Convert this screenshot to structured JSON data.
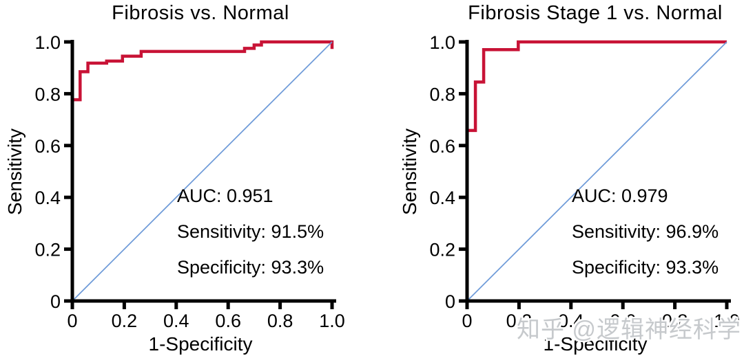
{
  "page": {
    "background": "#ffffff",
    "text_color": "#000000"
  },
  "watermark": {
    "text": "知乎 @逻辑神经科学",
    "color": "#c6c9cc"
  },
  "axis": {
    "color": "#000000",
    "line_width": 5,
    "tick_length": 12,
    "tick_direction": "out"
  },
  "chart_data": [
    {
      "type": "line",
      "title": "Fibrosis vs. Normal",
      "xlabel": "1-Specificity",
      "ylabel": "Sensitivity",
      "xlim": [
        0,
        1
      ],
      "ylim": [
        0,
        1
      ],
      "xticks": [
        "0",
        "0.2",
        "0.4",
        "0.6",
        "0.8",
        "1.0"
      ],
      "yticks": [
        "0",
        "0.2",
        "0.4",
        "0.6",
        "0.8",
        "1.0"
      ],
      "grid": false,
      "legend": "none",
      "stats": {
        "auc": 0.951,
        "sensitivity_pct": 91.5,
        "specificity_pct": 93.3
      },
      "annotations": [
        "AUC: 0.951",
        "Sensitivity: 91.5%",
        "Specificity: 93.3%"
      ],
      "series": [
        {
          "name": "ROC curve",
          "color": "#c81336",
          "width": 4.5,
          "points": [
            [
              0,
              0
            ],
            [
              0,
              0.777
            ],
            [
              0.03,
              0.777
            ],
            [
              0.03,
              0.885
            ],
            [
              0.06,
              0.885
            ],
            [
              0.06,
              0.918
            ],
            [
              0.132,
              0.918
            ],
            [
              0.132,
              0.926
            ],
            [
              0.193,
              0.926
            ],
            [
              0.193,
              0.945
            ],
            [
              0.265,
              0.945
            ],
            [
              0.265,
              0.963
            ],
            [
              0.663,
              0.963
            ],
            [
              0.663,
              0.975
            ],
            [
              0.7,
              0.975
            ],
            [
              0.7,
              0.988
            ],
            [
              0.728,
              0.988
            ],
            [
              0.728,
              1.0
            ],
            [
              1.0,
              1.0
            ],
            [
              1.0,
              0.973
            ]
          ]
        },
        {
          "name": "chance diagonal",
          "color": "#6d9ad8",
          "width": 1.7,
          "points": [
            [
              0,
              0
            ],
            [
              1,
              1
            ]
          ]
        }
      ]
    },
    {
      "type": "line",
      "title": "Fibrosis Stage 1 vs. Normal",
      "xlabel": "1-Specificity",
      "ylabel": "Sensitivity",
      "xlim": [
        0,
        1
      ],
      "ylim": [
        0,
        1
      ],
      "xticks": [
        "0",
        "0.2",
        "0.4",
        "0.6",
        "0.8",
        "1.0"
      ],
      "yticks": [
        "0",
        "0.2",
        "0.4",
        "0.6",
        "0.8",
        "1.0"
      ],
      "grid": false,
      "legend": "none",
      "stats": {
        "auc": 0.979,
        "sensitivity_pct": 96.9,
        "specificity_pct": 93.3
      },
      "annotations": [
        "AUC: 0.979",
        "Sensitivity: 96.9%",
        "Specificity: 93.3%"
      ],
      "series": [
        {
          "name": "ROC curve",
          "color": "#c81336",
          "width": 4.5,
          "points": [
            [
              0,
              0
            ],
            [
              0,
              0.658
            ],
            [
              0.032,
              0.658
            ],
            [
              0.032,
              0.845
            ],
            [
              0.064,
              0.845
            ],
            [
              0.064,
              0.97
            ],
            [
              0.197,
              0.97
            ],
            [
              0.197,
              1.0
            ],
            [
              1.0,
              1.0
            ]
          ]
        },
        {
          "name": "chance diagonal",
          "color": "#6d9ad8",
          "width": 1.7,
          "points": [
            [
              0,
              0
            ],
            [
              1,
              1
            ]
          ]
        }
      ]
    }
  ]
}
